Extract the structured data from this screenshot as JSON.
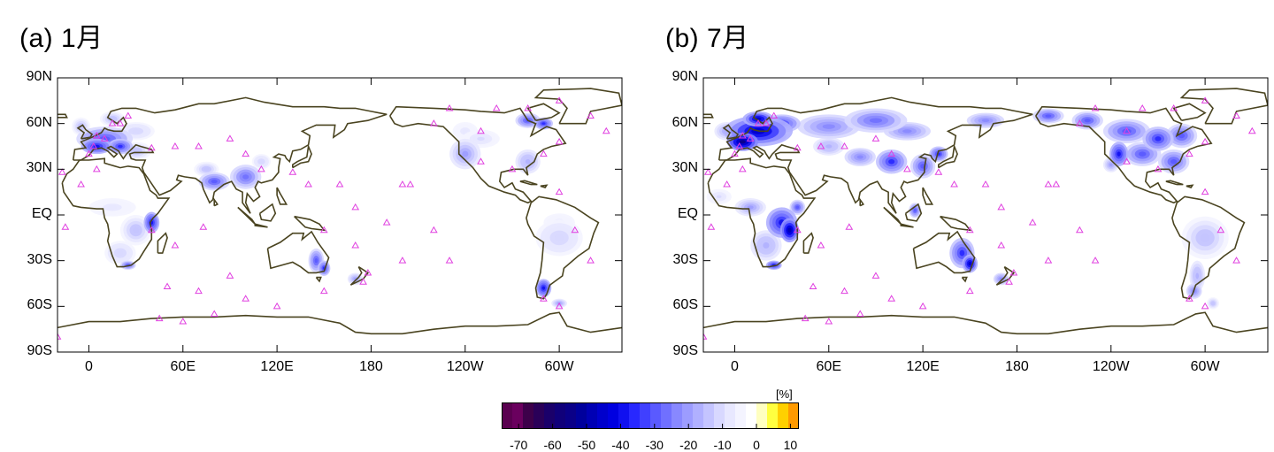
{
  "panels": [
    {
      "id": "a",
      "title": "(a) 1月",
      "month": "January"
    },
    {
      "id": "b",
      "title": "(b) 7月",
      "month": "July"
    }
  ],
  "axes": {
    "lat_labels": [
      "90N",
      "60N",
      "30N",
      "EQ",
      "30S",
      "60S",
      "90S"
    ],
    "lat_values": [
      90,
      60,
      30,
      0,
      -30,
      -60,
      -90
    ],
    "lon_labels": [
      "0",
      "60E",
      "120E",
      "180",
      "120W",
      "60W"
    ],
    "lon_values": [
      0,
      60,
      120,
      180,
      240,
      300
    ],
    "lon_range": [
      -20,
      340
    ]
  },
  "colorbar": {
    "unit": "[%]",
    "tick_labels": [
      "-70",
      "-60",
      "-50",
      "-40",
      "-30",
      "-20",
      "-10",
      "0",
      "10"
    ],
    "range": [
      -75,
      12.5
    ],
    "colors": [
      "#5a0050",
      "#6a005e",
      "#3d004a",
      "#2a0058",
      "#1a006a",
      "#10007a",
      "#0a0088",
      "#00009c",
      "#0000b4",
      "#0000cc",
      "#0000e0",
      "#1010f0",
      "#2828ff",
      "#4040ff",
      "#5a5aff",
      "#7070ff",
      "#8888ff",
      "#9c9cff",
      "#b0b0ff",
      "#c4c4ff",
      "#d8d8ff",
      "#e8e8ff",
      "#f4f4ff",
      "#ffffff",
      "#ffffc0",
      "#ffff40",
      "#ffd000",
      "#ff9a00"
    ]
  },
  "colors": {
    "coast": "#4a4420",
    "marker": "#e040e0",
    "frame": "#000000"
  }
}
